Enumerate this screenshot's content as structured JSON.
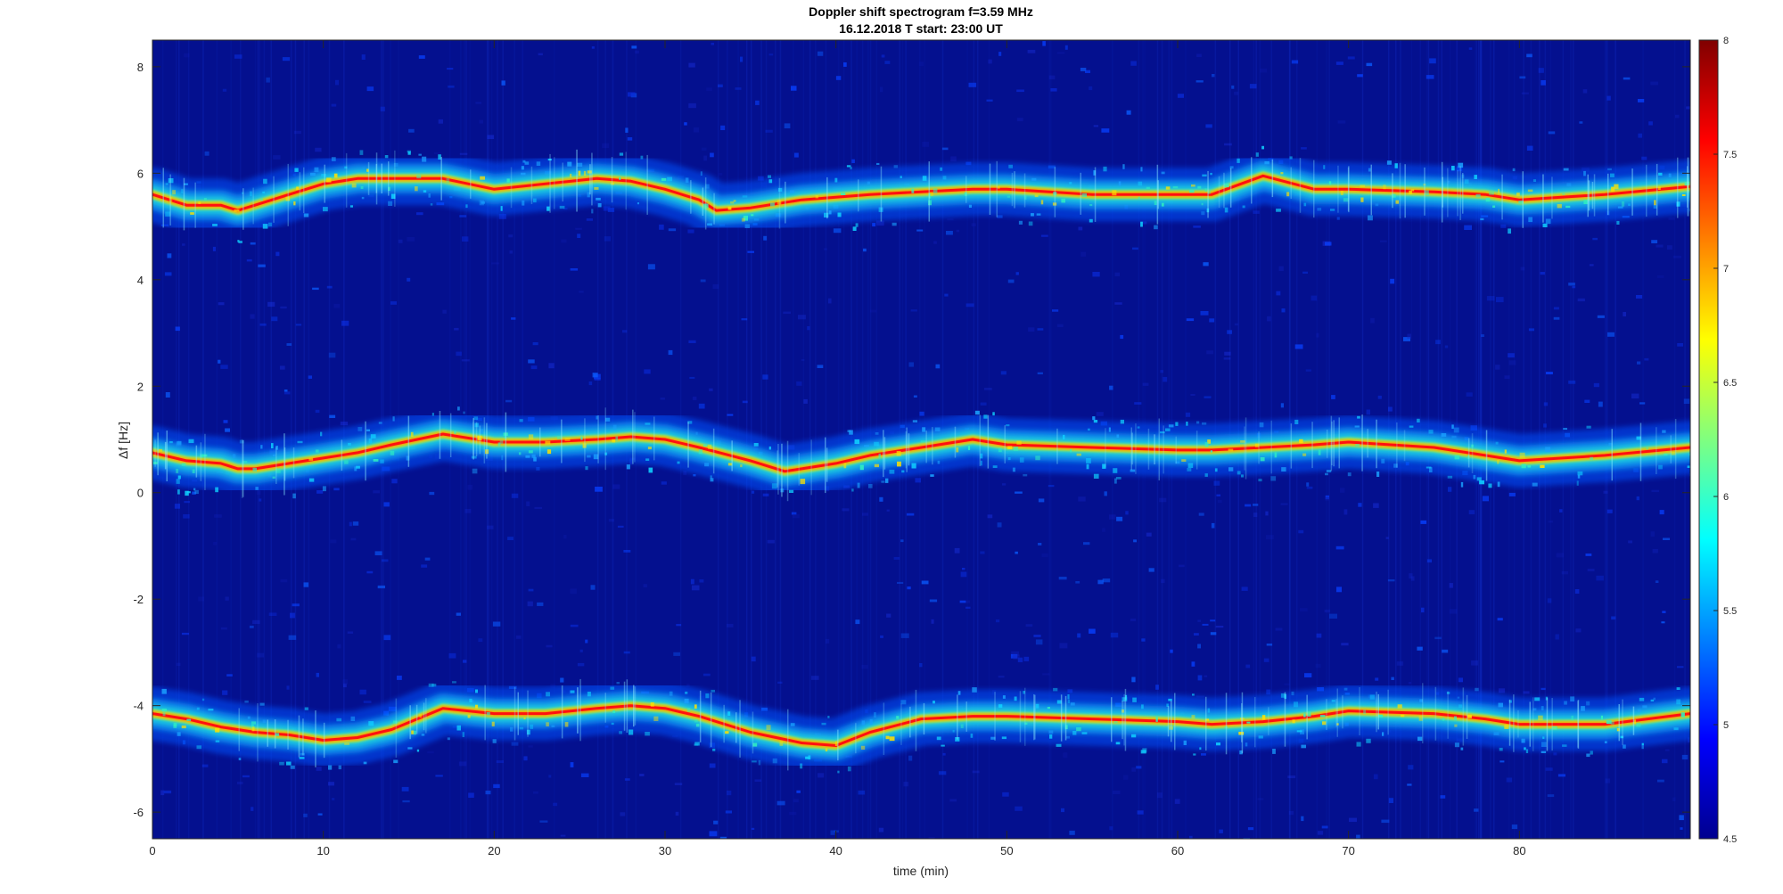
{
  "chart_data": {
    "type": "heatmap",
    "title": "Doppler shift spectrogram f=3.59 MHz",
    "subtitle": "16.12.2018   T start: 23:00 UT",
    "xlabel": "time (min)",
    "ylabel": "Δf [Hz]",
    "xlim": [
      0,
      90
    ],
    "ylim": [
      -6.5,
      8.5
    ],
    "xticks": [
      0,
      10,
      20,
      30,
      40,
      50,
      60,
      70,
      80
    ],
    "yticks": [
      -6,
      -4,
      -2,
      0,
      2,
      4,
      6,
      8
    ],
    "colorbar": {
      "colormap": "jet",
      "clim": [
        4.5,
        8
      ],
      "ticks": [
        4.5,
        5,
        5.5,
        6,
        6.5,
        7,
        7.5,
        8
      ]
    },
    "grid": false,
    "traces": [
      {
        "x": [
          0,
          2,
          4,
          5,
          6,
          8,
          10,
          12,
          14,
          17,
          20,
          23,
          26,
          28,
          30,
          32,
          33,
          35,
          37,
          38,
          40,
          42,
          45,
          48,
          50,
          55,
          60,
          62,
          65,
          68,
          70,
          75,
          78,
          80,
          85,
          90
        ],
        "y": [
          5.6,
          5.4,
          5.4,
          5.3,
          5.4,
          5.6,
          5.8,
          5.9,
          5.9,
          5.9,
          5.7,
          5.8,
          5.9,
          5.85,
          5.7,
          5.5,
          5.3,
          5.35,
          5.45,
          5.5,
          5.55,
          5.6,
          5.65,
          5.7,
          5.7,
          5.6,
          5.6,
          5.6,
          5.95,
          5.7,
          5.7,
          5.65,
          5.6,
          5.5,
          5.6,
          5.75
        ]
      },
      {
        "x": [
          0,
          2,
          4,
          5,
          6,
          8,
          10,
          12,
          14,
          17,
          20,
          23,
          26,
          28,
          30,
          32,
          35,
          37,
          38,
          40,
          42,
          45,
          48,
          50,
          55,
          60,
          62,
          65,
          68,
          70,
          75,
          78,
          80,
          85,
          90
        ],
        "y": [
          0.75,
          0.6,
          0.55,
          0.45,
          0.45,
          0.55,
          0.65,
          0.75,
          0.9,
          1.1,
          0.95,
          0.95,
          1.0,
          1.05,
          1.0,
          0.85,
          0.6,
          0.4,
          0.45,
          0.55,
          0.7,
          0.85,
          1.0,
          0.9,
          0.85,
          0.8,
          0.8,
          0.85,
          0.9,
          0.95,
          0.85,
          0.7,
          0.6,
          0.7,
          0.85
        ]
      },
      {
        "x": [
          0,
          2,
          4,
          6,
          8,
          10,
          12,
          14,
          17,
          20,
          23,
          26,
          28,
          30,
          32,
          35,
          38,
          40,
          42,
          45,
          48,
          50,
          55,
          60,
          62,
          65,
          68,
          70,
          75,
          78,
          80,
          85,
          90
        ],
        "y": [
          -4.15,
          -4.25,
          -4.4,
          -4.5,
          -4.55,
          -4.65,
          -4.6,
          -4.45,
          -4.05,
          -4.15,
          -4.15,
          -4.05,
          -4.0,
          -4.05,
          -4.2,
          -4.5,
          -4.7,
          -4.75,
          -4.5,
          -4.25,
          -4.2,
          -4.2,
          -4.25,
          -4.3,
          -4.35,
          -4.3,
          -4.2,
          -4.1,
          -4.15,
          -4.25,
          -4.35,
          -4.35,
          -4.15
        ]
      }
    ]
  }
}
